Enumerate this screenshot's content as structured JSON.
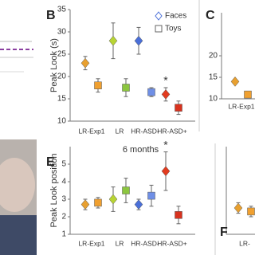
{
  "chart_data": [
    {
      "type": "dot",
      "panel": "B",
      "ylabel": "Peak Look (s)",
      "categories": [
        "LR-Exp1",
        "LR",
        "HR-ASD-",
        "HR-ASD+"
      ],
      "series": [
        {
          "name": "Faces",
          "marker": "diamond",
          "colors": [
            "#e8a030",
            "#b8d433",
            "#4a6fd8",
            "#e23b1f"
          ],
          "values": [
            23,
            28,
            28,
            16
          ],
          "errors": [
            1.5,
            4,
            3,
            1.5
          ]
        },
        {
          "name": "Toys",
          "marker": "square",
          "colors": [
            "#f0a030",
            "#8cc63f",
            "#6f8fe6",
            "#d8321e"
          ],
          "values": [
            18,
            17.5,
            16.5,
            13
          ],
          "errors": [
            1.5,
            2,
            1,
            1.5
          ]
        }
      ],
      "annotation": "*",
      "ylim": [
        10,
        35
      ],
      "yticks": [
        10,
        15,
        20,
        25,
        30,
        35
      ],
      "legend": "top-right"
    },
    {
      "type": "dot",
      "panel": "C",
      "categories": [
        "LR-Exp1"
      ],
      "series": [
        {
          "marker": "diamond",
          "colors": [
            "#e8a030"
          ],
          "values": [
            14
          ],
          "errors": [
            0.5
          ]
        },
        {
          "marker": "square",
          "colors": [
            "#f0a030"
          ],
          "values": [
            11
          ],
          "errors": [
            0.5
          ]
        }
      ],
      "ylim": [
        10,
        30
      ],
      "yticks": [
        10,
        15,
        20
      ]
    },
    {
      "type": "dot",
      "panel": "E",
      "title": "6 months",
      "ylabel": "Peak Look position",
      "categories": [
        "LR-Exp1",
        "LR",
        "HR-ASD-",
        "HR-ASD+"
      ],
      "series": [
        {
          "marker": "diamond",
          "colors": [
            "#e8a030",
            "#b8d433",
            "#4a6fd8",
            "#e23b1f"
          ],
          "values": [
            2.7,
            3.0,
            2.7,
            4.6
          ],
          "errors": [
            0.3,
            0.7,
            0.3,
            1.1
          ]
        },
        {
          "marker": "square",
          "colors": [
            "#f0a030",
            "#8cc63f",
            "#6f8fe6",
            "#d8321e"
          ],
          "values": [
            2.8,
            3.5,
            3.2,
            2.1
          ],
          "errors": [
            0.3,
            0.7,
            0.6,
            0.5
          ]
        }
      ],
      "annotation": "*",
      "ylim": [
        1,
        6
      ],
      "yticks": [
        1,
        2,
        3,
        4,
        5
      ]
    },
    {
      "type": "dot",
      "panel": "F",
      "categories": [
        "LR-"
      ],
      "series": [
        {
          "marker": "diamond",
          "colors": [
            "#e8a030"
          ],
          "values": [
            2.5
          ],
          "errors": [
            0.3
          ]
        },
        {
          "marker": "square",
          "colors": [
            "#f0a030"
          ],
          "values": [
            2.3
          ],
          "errors": [
            0.3
          ]
        }
      ],
      "ylim": [
        1,
        6
      ]
    }
  ]
}
